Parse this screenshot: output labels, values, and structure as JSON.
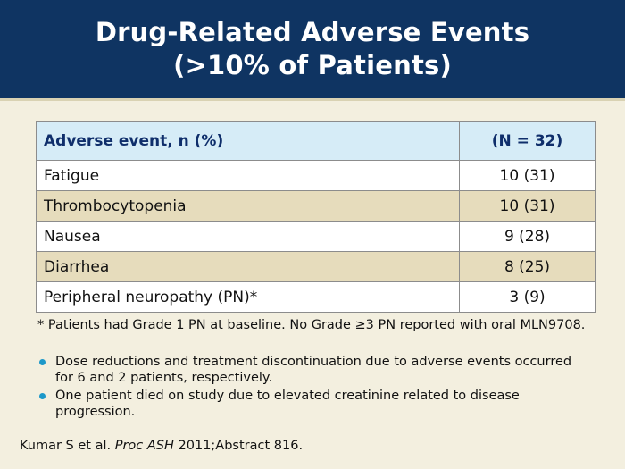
{
  "title": {
    "line1": "Drug-Related Adverse Events",
    "line2": "(>10% of Patients)"
  },
  "table": {
    "headers": [
      "Adverse event, n (%)",
      "(N = 32)"
    ],
    "rows": [
      {
        "event": "Fatigue",
        "value": "10 (31)"
      },
      {
        "event": "Thrombocytopenia",
        "value": "10 (31)"
      },
      {
        "event": "Nausea",
        "value": "9 (28)"
      },
      {
        "event": "Diarrhea",
        "value": "8 (25)"
      },
      {
        "event": "Peripheral neuropathy (PN)*",
        "value": "3 (9)"
      }
    ]
  },
  "footnote": "* Patients had Grade 1 PN at baseline. No Grade ≥3 PN reported with oral MLN9708.",
  "bullets": [
    "Dose reductions and treatment discontinuation due to adverse events occurred for 6 and 2 patients, respectively.",
    "One patient died on study due to elevated creatinine related to disease progression."
  ],
  "citation": {
    "authors": "Kumar S et al.",
    "journal": "Proc ASH",
    "rest": "2011;Abstract 816."
  },
  "colors": {
    "header_bg": "#0f3462",
    "table_header_bg": "#d6ecf7",
    "row_alt_bg": "#e6dcbc",
    "bullet": "#1c98c9"
  }
}
